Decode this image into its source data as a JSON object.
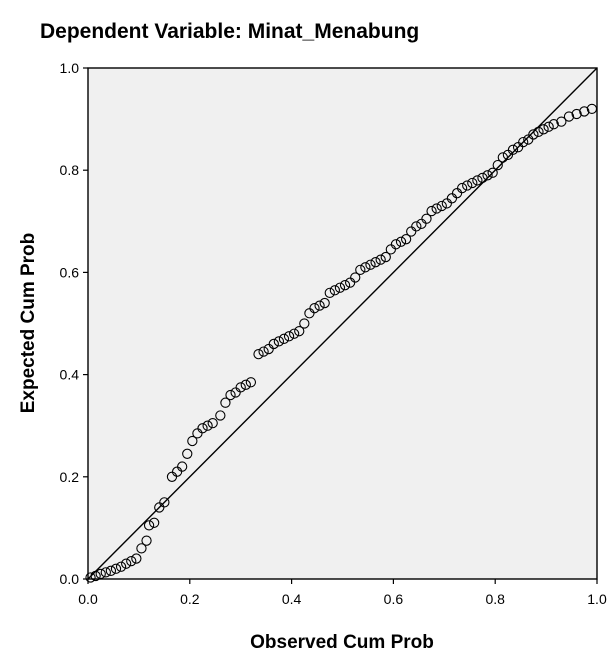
{
  "chart_data": {
    "type": "scatter",
    "title": "Dependent Variable: Minat_Menabung",
    "xlabel": "Observed Cum Prob",
    "ylabel": "Expected Cum Prob",
    "xlim": [
      0,
      1
    ],
    "ylim": [
      0,
      1
    ],
    "xticks": [
      "0.0",
      "0.2",
      "0.4",
      "0.6",
      "0.8",
      "1.0"
    ],
    "yticks": [
      "0.0",
      "0.2",
      "0.4",
      "0.6",
      "0.8",
      "1.0"
    ],
    "grid": false,
    "reference_line": {
      "from": [
        0,
        0
      ],
      "to": [
        1,
        1
      ]
    },
    "colors": {
      "plot_background": "#f0f0f0",
      "marker_stroke": "#000000",
      "line": "#000000"
    },
    "points": [
      [
        0.005,
        0.003
      ],
      [
        0.015,
        0.006
      ],
      [
        0.025,
        0.01
      ],
      [
        0.035,
        0.013
      ],
      [
        0.045,
        0.016
      ],
      [
        0.055,
        0.02
      ],
      [
        0.065,
        0.024
      ],
      [
        0.075,
        0.03
      ],
      [
        0.085,
        0.035
      ],
      [
        0.095,
        0.04
      ],
      [
        0.105,
        0.06
      ],
      [
        0.115,
        0.075
      ],
      [
        0.12,
        0.105
      ],
      [
        0.13,
        0.11
      ],
      [
        0.14,
        0.14
      ],
      [
        0.15,
        0.15
      ],
      [
        0.165,
        0.2
      ],
      [
        0.175,
        0.21
      ],
      [
        0.185,
        0.22
      ],
      [
        0.195,
        0.245
      ],
      [
        0.205,
        0.27
      ],
      [
        0.215,
        0.285
      ],
      [
        0.225,
        0.295
      ],
      [
        0.235,
        0.3
      ],
      [
        0.245,
        0.305
      ],
      [
        0.26,
        0.32
      ],
      [
        0.27,
        0.345
      ],
      [
        0.28,
        0.36
      ],
      [
        0.29,
        0.365
      ],
      [
        0.3,
        0.375
      ],
      [
        0.31,
        0.38
      ],
      [
        0.32,
        0.385
      ],
      [
        0.335,
        0.44
      ],
      [
        0.345,
        0.445
      ],
      [
        0.355,
        0.45
      ],
      [
        0.365,
        0.46
      ],
      [
        0.375,
        0.465
      ],
      [
        0.385,
        0.47
      ],
      [
        0.395,
        0.475
      ],
      [
        0.405,
        0.48
      ],
      [
        0.415,
        0.485
      ],
      [
        0.425,
        0.5
      ],
      [
        0.435,
        0.52
      ],
      [
        0.445,
        0.53
      ],
      [
        0.455,
        0.535
      ],
      [
        0.465,
        0.54
      ],
      [
        0.475,
        0.56
      ],
      [
        0.485,
        0.565
      ],
      [
        0.495,
        0.57
      ],
      [
        0.505,
        0.575
      ],
      [
        0.515,
        0.58
      ],
      [
        0.525,
        0.59
      ],
      [
        0.535,
        0.605
      ],
      [
        0.545,
        0.61
      ],
      [
        0.555,
        0.615
      ],
      [
        0.565,
        0.62
      ],
      [
        0.575,
        0.625
      ],
      [
        0.585,
        0.63
      ],
      [
        0.595,
        0.645
      ],
      [
        0.605,
        0.655
      ],
      [
        0.615,
        0.66
      ],
      [
        0.625,
        0.665
      ],
      [
        0.635,
        0.68
      ],
      [
        0.645,
        0.69
      ],
      [
        0.655,
        0.695
      ],
      [
        0.665,
        0.705
      ],
      [
        0.675,
        0.72
      ],
      [
        0.685,
        0.725
      ],
      [
        0.695,
        0.73
      ],
      [
        0.705,
        0.735
      ],
      [
        0.715,
        0.745
      ],
      [
        0.725,
        0.755
      ],
      [
        0.735,
        0.765
      ],
      [
        0.745,
        0.77
      ],
      [
        0.755,
        0.775
      ],
      [
        0.765,
        0.78
      ],
      [
        0.775,
        0.785
      ],
      [
        0.785,
        0.79
      ],
      [
        0.795,
        0.795
      ],
      [
        0.805,
        0.81
      ],
      [
        0.815,
        0.825
      ],
      [
        0.825,
        0.83
      ],
      [
        0.835,
        0.84
      ],
      [
        0.845,
        0.845
      ],
      [
        0.855,
        0.855
      ],
      [
        0.865,
        0.86
      ],
      [
        0.875,
        0.87
      ],
      [
        0.885,
        0.875
      ],
      [
        0.895,
        0.88
      ],
      [
        0.905,
        0.885
      ],
      [
        0.915,
        0.89
      ],
      [
        0.93,
        0.895
      ],
      [
        0.945,
        0.905
      ],
      [
        0.96,
        0.91
      ],
      [
        0.975,
        0.915
      ],
      [
        0.99,
        0.92
      ]
    ]
  }
}
